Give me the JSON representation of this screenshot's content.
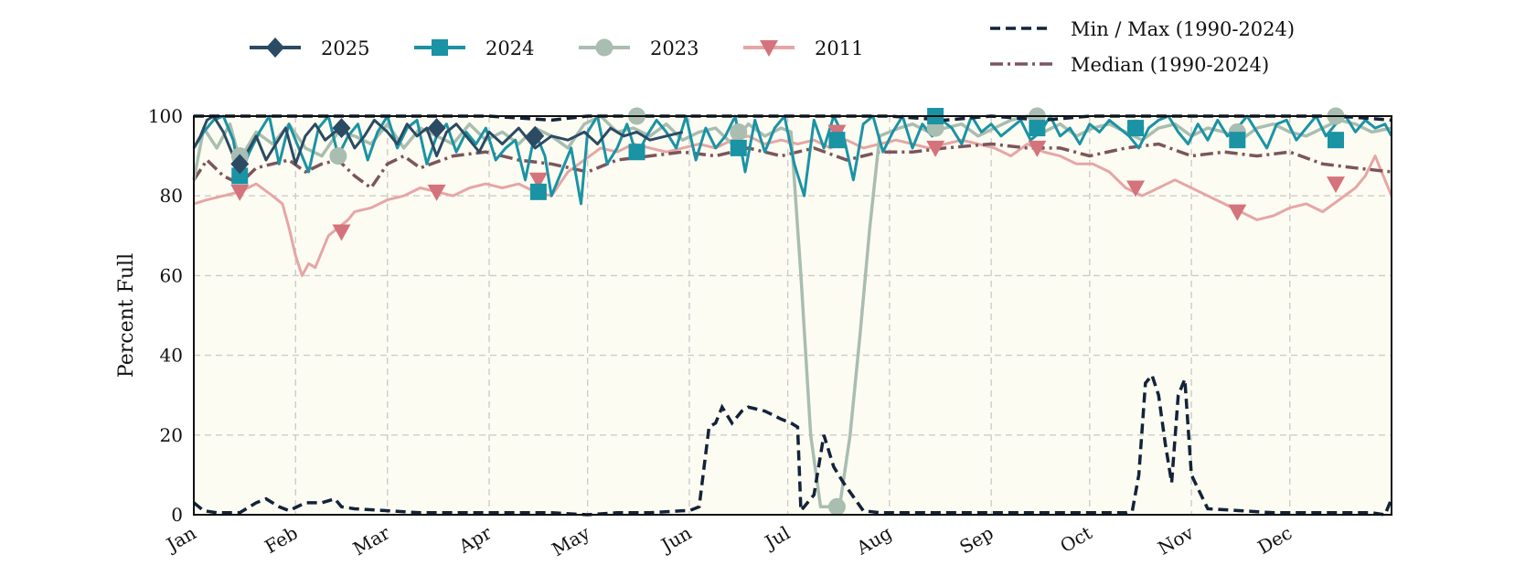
{
  "chart_data": {
    "type": "line",
    "ylabel": "Percent Full",
    "xlabel": "",
    "ylim": [
      0,
      100
    ],
    "yticks": [
      0,
      20,
      40,
      60,
      80,
      100
    ],
    "xlim": [
      1,
      366
    ],
    "month_ticks": [
      {
        "label": "Jan",
        "day": 1
      },
      {
        "label": "Feb",
        "day": 32
      },
      {
        "label": "Mar",
        "day": 60
      },
      {
        "label": "Apr",
        "day": 91
      },
      {
        "label": "May",
        "day": 121
      },
      {
        "label": "Jun",
        "day": 152
      },
      {
        "label": "Jul",
        "day": 182
      },
      {
        "label": "Aug",
        "day": 213
      },
      {
        "label": "Sep",
        "day": 244
      },
      {
        "label": "Oct",
        "day": 274
      },
      {
        "label": "Nov",
        "day": 305
      },
      {
        "label": "Dec",
        "day": 335
      }
    ],
    "grid": true,
    "legend": [
      {
        "name": "2025",
        "series": "y2025"
      },
      {
        "name": "2024",
        "series": "y2024"
      },
      {
        "name": "2023",
        "series": "y2023"
      },
      {
        "name": "2011",
        "series": "y2011"
      },
      {
        "name": "Min / Max (1990-2024)",
        "series": "minmax"
      },
      {
        "name": "Median (1990-2024)",
        "series": "median"
      }
    ],
    "colors": {
      "y2025": "#2b4a63",
      "y2024": "#1a93a4",
      "y2023": "#a9bdb1",
      "y2011": "#d4737b",
      "y2011_line": "#e6a6a5",
      "minmax": "#13233a",
      "median": "#7c555c",
      "plot_bg": "#fdfcf2",
      "grid": "#cccccc"
    },
    "series": {
      "max": {
        "x": [
          1,
          15,
          30,
          60,
          91,
          110,
          121,
          135,
          152,
          182,
          200,
          213,
          230,
          244,
          260,
          274,
          290,
          305,
          320,
          335,
          350,
          366
        ],
        "y": [
          100,
          100,
          100,
          100,
          100,
          99,
          100,
          100,
          100,
          100,
          100,
          100,
          99,
          100,
          99,
          100,
          100,
          100,
          100,
          100,
          100,
          99
        ]
      },
      "min": {
        "x": [
          1,
          4,
          8,
          15,
          20,
          23,
          27,
          30,
          35,
          40,
          44,
          46,
          50,
          60,
          70,
          80,
          91,
          100,
          110,
          121,
          130,
          140,
          150,
          152,
          155,
          158,
          160,
          162,
          165,
          168,
          170,
          175,
          180,
          183,
          185,
          186,
          190,
          193,
          196,
          199,
          205,
          210,
          215,
          230,
          250,
          260,
          275,
          285,
          287,
          289,
          291,
          293,
          295,
          297,
          299,
          301,
          303,
          305,
          310,
          320,
          330,
          340,
          350,
          360,
          364,
          366
        ],
        "y": [
          3,
          1,
          0.5,
          0.5,
          3,
          4,
          2,
          1,
          3,
          3,
          4,
          2,
          1.5,
          1,
          0.5,
          0.5,
          0.5,
          0.5,
          0.5,
          0,
          0.5,
          0.5,
          1,
          1,
          2,
          22,
          23,
          27,
          23,
          26,
          27,
          26,
          24,
          23,
          22,
          1,
          5,
          20,
          12,
          8,
          1,
          0.5,
          0.5,
          0.5,
          0.5,
          0.5,
          0.5,
          0.5,
          1,
          10,
          33,
          35,
          30,
          18,
          8,
          30,
          34,
          10,
          1.5,
          1,
          0.5,
          0.5,
          0.5,
          0.5,
          0,
          4
        ]
      },
      "median": {
        "x": [
          1,
          5,
          10,
          15,
          20,
          25,
          30,
          35,
          40,
          45,
          50,
          55,
          60,
          65,
          70,
          80,
          90,
          100,
          110,
          121,
          130,
          140,
          150,
          160,
          170,
          180,
          190,
          200,
          210,
          220,
          230,
          244,
          255,
          265,
          274,
          285,
          295,
          305,
          315,
          325,
          335,
          345,
          355,
          366
        ],
        "y": [
          84,
          89,
          85,
          83,
          87,
          88,
          89,
          86,
          88,
          89,
          85,
          82,
          88,
          90,
          87,
          90,
          91,
          89,
          88,
          86,
          89,
          90,
          91,
          90,
          92,
          90,
          92,
          89,
          91,
          91,
          92,
          93,
          92,
          92,
          90,
          92,
          93,
          90,
          91,
          90,
          91,
          88,
          87,
          86
        ]
      },
      "y2025": {
        "x": [
          1,
          3,
          5,
          7,
          10,
          13,
          15,
          18,
          20,
          23,
          26,
          29,
          32,
          35,
          38,
          41,
          44,
          47,
          50,
          53,
          56,
          60,
          63,
          66,
          69,
          72,
          75,
          78,
          81,
          85,
          88,
          91,
          95,
          100,
          105,
          110,
          115,
          120,
          124,
          128,
          132,
          136,
          140,
          145,
          150
        ],
        "y": [
          92,
          95,
          99,
          100,
          96,
          90,
          88,
          92,
          95,
          89,
          93,
          97,
          88,
          95,
          98,
          94,
          96,
          97,
          92,
          95,
          99,
          96,
          93,
          98,
          95,
          97,
          90,
          96,
          98,
          94,
          91,
          96,
          93,
          97,
          92,
          95,
          94,
          96,
          93,
          97,
          95,
          96,
          94,
          95,
          96
        ]
      },
      "y2024": {
        "x": [
          1,
          4,
          7,
          10,
          13,
          15,
          18,
          21,
          24,
          27,
          30,
          33,
          36,
          39,
          42,
          45,
          48,
          51,
          54,
          57,
          60,
          63,
          66,
          69,
          72,
          75,
          78,
          81,
          84,
          87,
          90,
          93,
          96,
          99,
          102,
          105,
          108,
          110,
          113,
          116,
          119,
          121,
          124,
          127,
          130,
          133,
          136,
          139,
          142,
          145,
          148,
          151,
          154,
          157,
          160,
          163,
          166,
          169,
          172,
          175,
          178,
          181,
          184,
          187,
          190,
          193,
          196,
          199,
          202,
          205,
          208,
          211,
          214,
          217,
          220,
          223,
          226,
          229,
          232,
          235,
          238,
          241,
          244,
          247,
          250,
          253,
          256,
          259,
          262,
          265,
          268,
          271,
          274,
          277,
          280,
          283,
          286,
          289,
          292,
          295,
          298,
          301,
          304,
          307,
          310,
          313,
          316,
          319,
          322,
          325,
          328,
          331,
          334,
          337,
          340,
          343,
          346,
          349,
          352,
          355,
          358,
          361,
          364,
          366
        ],
        "y": [
          92,
          96,
          99,
          100,
          94,
          85,
          91,
          96,
          100,
          88,
          98,
          92,
          86,
          97,
          100,
          90,
          95,
          98,
          89,
          96,
          100,
          92,
          97,
          99,
          88,
          95,
          98,
          91,
          96,
          93,
          97,
          89,
          92,
          94,
          84,
          96,
          90,
          80,
          86,
          92,
          78,
          96,
          100,
          88,
          92,
          98,
          90,
          95,
          99,
          96,
          92,
          100,
          89,
          97,
          92,
          95,
          100,
          86,
          99,
          91,
          97,
          100,
          88,
          80,
          99,
          92,
          100,
          95,
          84,
          98,
          100,
          91,
          96,
          100,
          92,
          98,
          95,
          99,
          97,
          93,
          100,
          96,
          98,
          95,
          97,
          99,
          94,
          96,
          100,
          95,
          97,
          93,
          98,
          96,
          99,
          97,
          95,
          92,
          97,
          99,
          100,
          96,
          93,
          98,
          94,
          99,
          95,
          97,
          100,
          96,
          92,
          98,
          99,
          94,
          97,
          100,
          95,
          98,
          100,
          96,
          99,
          97,
          98,
          95
        ]
      },
      "y2023": {
        "x": [
          1,
          4,
          8,
          12,
          15,
          20,
          25,
          30,
          35,
          40,
          45,
          50,
          55,
          60,
          65,
          70,
          75,
          80,
          85,
          90,
          95,
          100,
          105,
          110,
          115,
          120,
          125,
          130,
          135,
          140,
          145,
          150,
          155,
          160,
          165,
          170,
          175,
          180,
          183,
          186,
          189,
          192,
          195,
          198,
          201,
          204,
          207,
          210,
          213,
          216,
          220,
          225,
          230,
          235,
          240,
          245,
          250,
          255,
          260,
          265,
          270,
          275,
          280,
          285,
          290,
          295,
          300,
          305,
          310,
          315,
          320,
          325,
          330,
          335,
          340,
          345,
          350,
          355,
          360,
          366
        ],
        "y": [
          84,
          97,
          92,
          98,
          89,
          96,
          93,
          98,
          92,
          90,
          96,
          95,
          93,
          98,
          92,
          97,
          95,
          93,
          98,
          94,
          96,
          93,
          97,
          95,
          92,
          98,
          100,
          96,
          97,
          95,
          98,
          94,
          96,
          97,
          93,
          98,
          95,
          97,
          96,
          60,
          20,
          2,
          2,
          3,
          20,
          45,
          72,
          95,
          96,
          97,
          98,
          96,
          97,
          98,
          95,
          97,
          99,
          100,
          96,
          98,
          95,
          97,
          98,
          96,
          94,
          97,
          98,
          95,
          97,
          96,
          94,
          97,
          98,
          96,
          95,
          97,
          99,
          98,
          96,
          97
        ]
      },
      "y2011": {
        "x": [
          1,
          5,
          10,
          15,
          20,
          25,
          28,
          30,
          32,
          34,
          36,
          38,
          40,
          42,
          45,
          48,
          50,
          55,
          60,
          65,
          70,
          75,
          80,
          85,
          90,
          95,
          100,
          105,
          110,
          115,
          120,
          125,
          130,
          135,
          140,
          145,
          150,
          155,
          160,
          165,
          170,
          175,
          180,
          185,
          190,
          195,
          200,
          205,
          210,
          215,
          220,
          225,
          230,
          235,
          240,
          245,
          250,
          255,
          260,
          265,
          270,
          275,
          280,
          285,
          290,
          295,
          300,
          305,
          310,
          315,
          320,
          325,
          330,
          335,
          340,
          345,
          350,
          355,
          358,
          361,
          364,
          366
        ],
        "y": [
          78,
          79,
          80,
          81,
          83,
          80,
          78,
          72,
          65,
          60,
          63,
          62,
          66,
          70,
          72,
          74,
          76,
          77,
          79,
          80,
          82,
          81,
          80,
          82,
          83,
          82,
          83,
          81,
          80,
          86,
          89,
          92,
          91,
          93,
          92,
          91,
          92,
          93,
          92,
          94,
          95,
          93,
          94,
          93,
          94,
          92,
          94,
          92,
          93,
          94,
          93,
          92,
          93,
          94,
          93,
          92,
          90,
          93,
          91,
          90,
          88,
          88,
          86,
          82,
          80,
          82,
          84,
          82,
          80,
          78,
          76,
          74,
          75,
          77,
          78,
          76,
          79,
          82,
          85,
          90,
          84,
          80
        ]
      }
    },
    "markers": {
      "y2025": {
        "x": [
          15,
          46,
          75,
          105
        ],
        "y": [
          88,
          97,
          97,
          95
        ]
      },
      "y2024": {
        "x": [
          15,
          106,
          136,
          167,
          197,
          227,
          258,
          288,
          319,
          349
        ],
        "y": [
          85,
          81,
          91,
          92,
          94,
          100,
          97,
          97,
          94,
          94
        ]
      },
      "y2023": {
        "x": [
          15,
          45,
          136,
          167,
          197,
          227,
          258,
          288,
          319,
          349
        ],
        "y": [
          90,
          90,
          100,
          96,
          2,
          97,
          100,
          97,
          96,
          100
        ]
      },
      "y2011": {
        "x": [
          15,
          46,
          75,
          106,
          197,
          227,
          258,
          288,
          319,
          349
        ],
        "y": [
          81,
          71,
          81,
          84,
          96,
          92,
          92,
          82,
          76,
          83
        ]
      }
    }
  }
}
